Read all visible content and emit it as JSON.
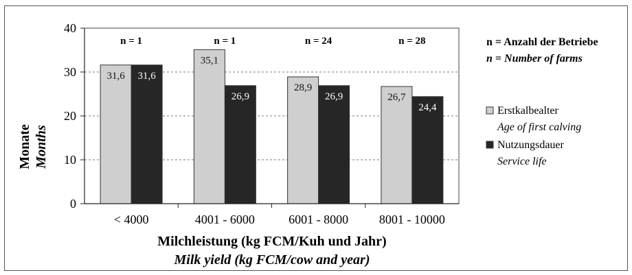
{
  "chart_data": {
    "type": "bar",
    "categories": [
      "< 4000",
      "4001 - 6000",
      "6001 - 8000",
      "8001 - 10000"
    ],
    "series": [
      {
        "name": "Erstkalbealter",
        "name_en": "Age of first calving",
        "color": "#cfcfcf",
        "values": [
          31.6,
          35.1,
          28.9,
          26.7
        ],
        "value_labels": [
          "31,6",
          "35,1",
          "28,9",
          "26,7"
        ]
      },
      {
        "name": "Nutzungsdauer",
        "name_en": "Service life",
        "color": "#262626",
        "values": [
          31.6,
          26.9,
          26.9,
          24.4
        ],
        "value_labels": [
          "31,6",
          "26,9",
          "26,9",
          "24,4"
        ]
      }
    ],
    "n_labels": [
      "n = 1",
      "n = 1",
      "n = 24",
      "n = 28"
    ],
    "xlabel": "Milchleistung (kg FCM/Kuh und Jahr)",
    "xlabel_en": "Milk yield (kg FCM/cow and year)",
    "ylabel": "Monate",
    "ylabel_en": "Months",
    "ylim": [
      0,
      40
    ],
    "yticks": [
      0,
      10,
      20,
      30,
      40
    ],
    "grid": true,
    "legend_position": "right",
    "n_note": "n = Anzahl der Betriebe",
    "n_note_en": "n = Number of farms"
  }
}
